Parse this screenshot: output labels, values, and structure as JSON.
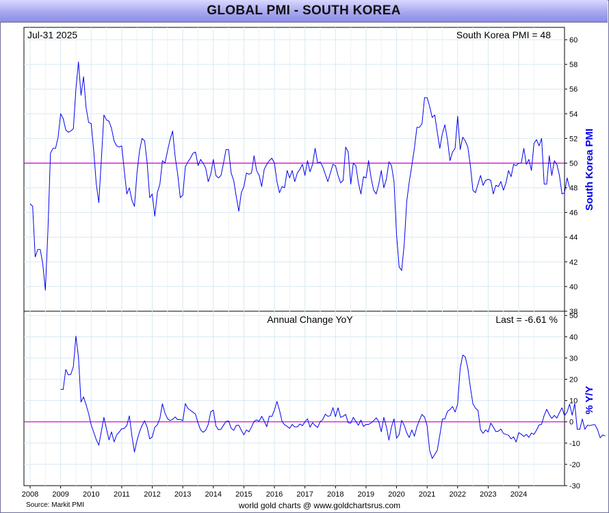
{
  "title": "GLOBAL PMI - SOUTH KOREA",
  "source": "Source: Markit PMI",
  "footer": "world gold charts @ www.goldchartsrus.com",
  "colors": {
    "series": "#0000ee",
    "reference_line": "#cc00cc",
    "grid": "#d8e8f0",
    "axis_label": "#0000ee"
  },
  "chart_data": [
    {
      "type": "line",
      "title": "",
      "date_label": "Jul-31  2025",
      "last_label": "South Korea PMI = 48",
      "ylabel": "South Korea PMI",
      "ylim": [
        38,
        61
      ],
      "yticks": [
        38,
        40,
        42,
        44,
        46,
        48,
        50,
        52,
        54,
        56,
        58,
        60
      ],
      "reference_line": 50,
      "grid": true,
      "x_start": "2008-01",
      "series": [
        {
          "values": [
            46.7,
            46.5,
            42.4,
            43.0,
            43.0,
            41.8,
            39.7,
            44.5,
            50.8,
            51.2,
            51.2,
            52.1,
            54.0,
            53.6,
            52.7,
            52.5,
            52.6,
            52.8,
            56.0,
            58.2,
            55.5,
            57.0,
            54.5,
            53.3,
            53.2,
            51.0,
            48.3,
            46.8,
            50.3,
            53.9,
            53.5,
            53.4,
            52.8,
            51.8,
            51.4,
            51.3,
            51.4,
            49.4,
            47.5,
            48.0,
            47.0,
            46.5,
            49.2,
            51.0,
            52.0,
            51.8,
            50.0,
            47.2,
            47.5,
            45.7,
            47.6,
            48.3,
            50.2,
            50.0,
            51.0,
            51.9,
            52.6,
            50.5,
            49.1,
            47.2,
            47.4,
            49.7,
            50.1,
            50.4,
            50.8,
            50.9,
            49.8,
            50.3,
            50.0,
            49.6,
            48.5,
            49.1,
            50.3,
            49.0,
            48.8,
            49.0,
            50.0,
            51.1,
            51.1,
            49.2,
            48.6,
            47.3,
            46.1,
            47.6,
            48.1,
            49.2,
            49.1,
            49.2,
            50.6,
            49.4,
            49.0,
            48.1,
            49.5,
            49.9,
            50.2,
            50.4,
            50.0,
            48.5,
            47.6,
            48.1,
            48.0,
            49.4,
            48.8,
            49.4,
            48.5,
            49.2,
            49.5,
            49.9,
            49.0,
            50.2,
            49.3,
            49.9,
            51.2,
            50.0,
            50.1,
            49.7,
            49.1,
            48.5,
            49.2,
            49.9,
            49.8,
            49.0,
            48.4,
            48.6,
            51.3,
            50.9,
            48.3,
            50.0,
            49.8,
            48.4,
            47.5,
            48.9,
            48.8,
            50.2,
            48.8,
            47.8,
            47.5,
            48.3,
            49.4,
            48.0,
            48.7,
            50.1,
            49.8,
            48.5,
            44.2,
            41.6,
            41.3,
            43.4,
            46.9,
            48.5,
            49.8,
            51.2,
            52.9,
            52.9,
            53.2,
            55.3,
            55.3,
            54.6,
            53.7,
            53.9,
            52.5,
            51.2,
            52.4,
            53.1,
            51.9,
            50.2,
            50.9,
            51.2,
            53.8,
            51.1,
            52.1,
            51.8,
            51.3,
            49.8,
            47.8,
            47.6,
            48.3,
            49.0,
            48.2,
            48.6,
            48.7,
            48.6,
            47.5,
            48.2,
            48.1,
            48.5,
            47.8,
            48.4,
            49.4,
            48.9,
            49.9,
            49.8,
            50.0,
            50.0,
            51.2,
            49.9,
            50.3,
            49.4,
            51.6,
            51.9,
            51.4,
            52.0,
            48.3,
            48.3,
            50.6,
            49.0,
            50.2,
            49.9,
            49.0,
            47.5,
            47.6,
            48.8,
            48.0
          ]
        }
      ]
    },
    {
      "type": "line",
      "title": "Annual Change YoY",
      "last_label": "Last = -6.61 %",
      "ylabel": "% Y/Y",
      "ylim": [
        -30,
        52
      ],
      "yticks": [
        -30,
        -20,
        -10,
        0,
        10,
        20,
        30,
        40,
        50
      ],
      "reference_line": 0,
      "grid": true,
      "x_start": "2009-01",
      "series": [
        {
          "values": [
            15.3,
            15.2,
            24.6,
            22.1,
            22.3,
            26.0,
            40.3,
            30.5,
            9.3,
            11.7,
            8.0,
            3.9,
            -1.5,
            -4.9,
            -8.4,
            -11.0,
            -4.4,
            2.1,
            -3.3,
            -8.5,
            -4.7,
            -9.4,
            -6.2,
            -4.8,
            -3.3,
            -3.1,
            -1.7,
            2.8,
            -6.6,
            -14.2,
            -8.8,
            -4.7,
            -1.7,
            0.5,
            -2.6,
            -8.0,
            -7.1,
            -2.5,
            -1.4,
            1.6,
            8.5,
            4.1,
            1.5,
            0.6,
            1.1,
            2.3,
            1.0,
            1.1,
            0.5,
            8.6,
            6.3,
            5.4,
            4.5,
            3.6,
            -0.6,
            -3.8,
            -4.9,
            -4.0,
            -1.2,
            4.7,
            5.5,
            -1.9,
            -3.7,
            -3.5,
            -1.6,
            0.2,
            0.4,
            -3.0,
            -4.0,
            -1.7,
            -1.6,
            -4.0,
            -6.1,
            -3.8,
            -4.7,
            -2.4,
            0.2,
            0.9,
            0.3,
            2.6,
            0.3,
            -2.3,
            2.7,
            2.5,
            5.5,
            9.6,
            5.4,
            0.2,
            -1.4,
            -2.1,
            -3.1,
            -1.2,
            -2.4,
            -2.4,
            -1.0,
            -1.8,
            0.0,
            1.4,
            -2.5,
            -0.4,
            -1.8,
            -2.6,
            0.1,
            1.0,
            3.6,
            2.6,
            2.9,
            6.7,
            2.4,
            6.6,
            2.1,
            2.6,
            3.5,
            -0.4,
            -0.6,
            2.1,
            0.2,
            -1.6,
            0.8,
            -2.2,
            -1.2,
            -1.2,
            -0.5,
            0.5,
            1.9,
            0.1,
            -4.7,
            2.1,
            -2.4,
            -8.6,
            -2.4,
            1.4,
            -7.7,
            -6.0,
            0.7,
            -1.6,
            -5.2,
            -7.4,
            -3.8,
            -6.8,
            -2.3,
            0.8,
            3.5,
            2.2,
            -1.8,
            -13.4,
            -17.2,
            -15.4,
            -13.3,
            -6.3,
            1.3,
            1.4,
            4.9,
            5.8,
            7.2,
            4.6,
            8.3,
            25.1,
            31.4,
            30.5,
            25.2,
            16.2,
            8.5,
            6.4,
            5.4,
            -3.7,
            -5.4,
            -3.8,
            -4.8,
            -0.6,
            -2.4,
            -4.6,
            -4.4,
            -3.4,
            -5.5,
            -5.9,
            -6.3,
            -8.0,
            -7.1,
            -9.5,
            -5.1,
            -5.8,
            -6.9,
            -5.9,
            -7.3,
            -5.3,
            -5.9,
            -3.9,
            -1.5,
            -1.1,
            3.0,
            5.9,
            3.4,
            1.6,
            3.0,
            1.8,
            4.3,
            6.6,
            2.9,
            4.6,
            8.3,
            3.1,
            8.6,
            -3.5,
            -3.5,
            1.3,
            -3.5,
            -1.6,
            -1.8,
            -1.4,
            -1.4,
            -3.8,
            -7.5,
            -6.2,
            -6.6
          ]
        }
      ]
    }
  ],
  "x_axis": {
    "tick_labels": [
      "2008",
      "2009",
      "2010",
      "2011",
      "2012",
      "2013",
      "2014",
      "2015",
      "2016",
      "2017",
      "2018",
      "2019",
      "2020",
      "2021",
      "2022",
      "2023",
      "2024"
    ]
  }
}
